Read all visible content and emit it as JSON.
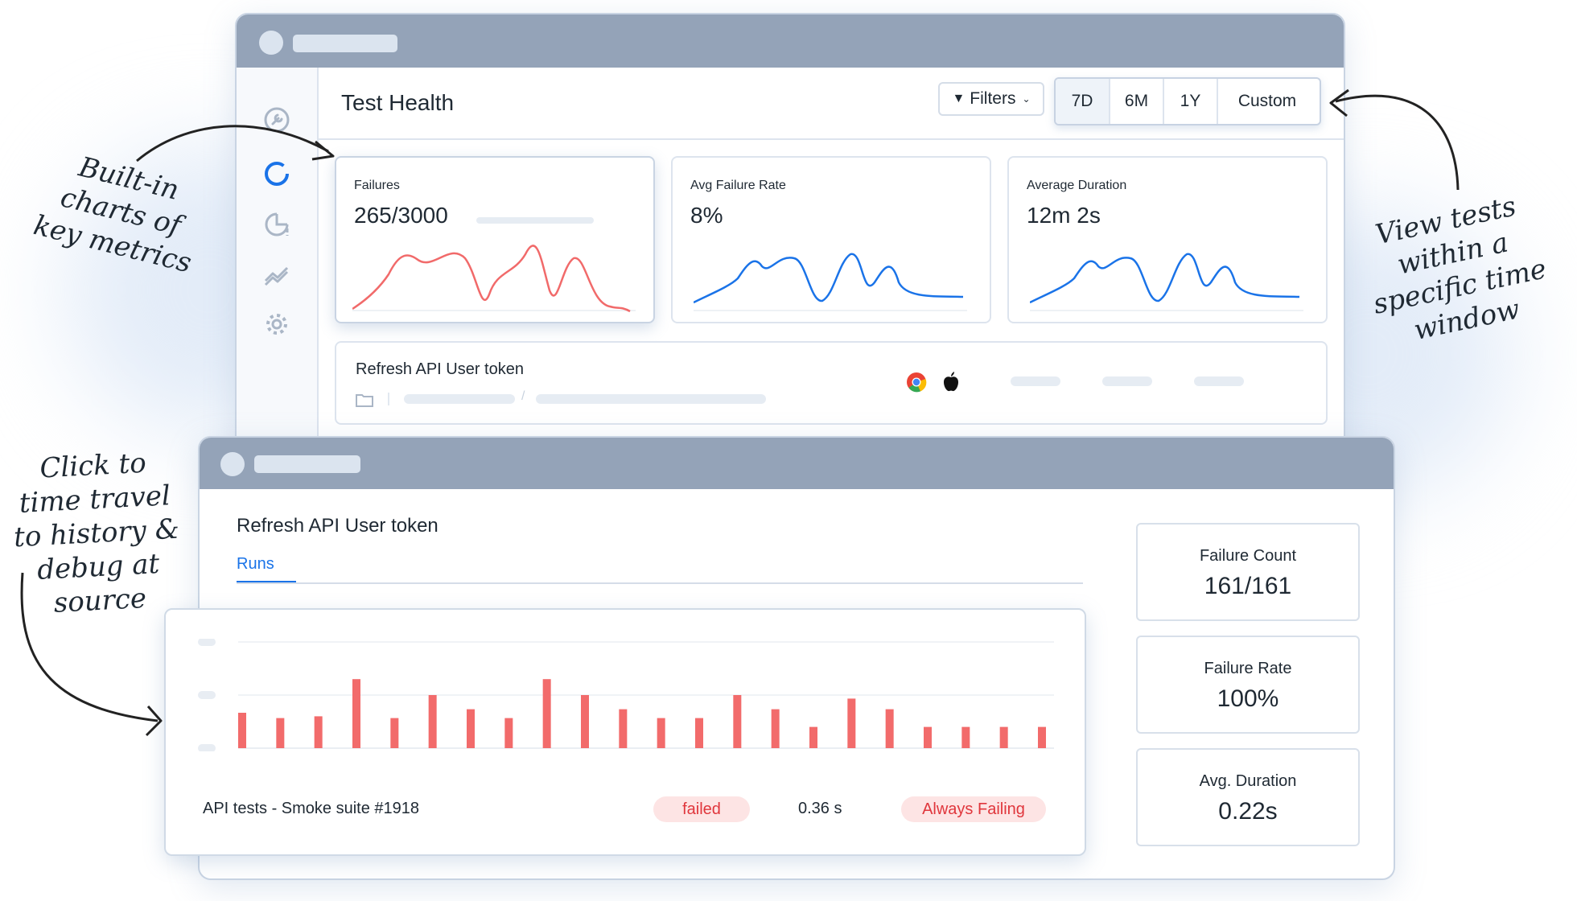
{
  "header": {
    "title": "Test Health",
    "filters_label": "Filters"
  },
  "time_range": {
    "options": [
      "7D",
      "6M",
      "1Y",
      "Custom"
    ],
    "selected": "7D"
  },
  "metrics": [
    {
      "label": "Failures",
      "value": "265/3000",
      "color": "#f16a6a",
      "progress": 0.09
    },
    {
      "label": "Avg Failure Rate",
      "value": "8%",
      "color": "#1a73e8"
    },
    {
      "label": "Average Duration",
      "value": "12m 2s",
      "color": "#1a73e8"
    }
  ],
  "test_row": {
    "name": "Refresh API User token",
    "browser_icons": [
      "chrome-icon",
      "apple-icon"
    ]
  },
  "detail": {
    "title": "Refresh API User token",
    "tab": "Runs",
    "run_name": "API tests - Smoke suite #1918",
    "status": "failed",
    "duration": "0.36 s",
    "flag": "Always Failing",
    "bar_color": "#f26b6b",
    "chart_data": {
      "type": "bar",
      "values": [
        2,
        1.7,
        1.8,
        3.9,
        1.7,
        3,
        2.2,
        1.7,
        3.9,
        3,
        2.2,
        1.7,
        1.7,
        3,
        2.2,
        1.2,
        2.8,
        2.2,
        1.2,
        1.2,
        1.2,
        1.2
      ],
      "ylim": [
        0,
        6
      ],
      "grid": true
    }
  },
  "stats": [
    {
      "label": "Failure Count",
      "value": "161/161"
    },
    {
      "label": "Failure Rate",
      "value": "100%"
    },
    {
      "label": "Avg. Duration",
      "value": "0.22s"
    }
  ],
  "annotations": {
    "charts": [
      "Built-in",
      "charts of",
      "key metrics"
    ],
    "time_window": [
      "View tests",
      "within a",
      "specific time",
      "window"
    ],
    "time_travel": [
      "Click to",
      "time travel",
      "to history &",
      "debug at",
      "source"
    ]
  }
}
